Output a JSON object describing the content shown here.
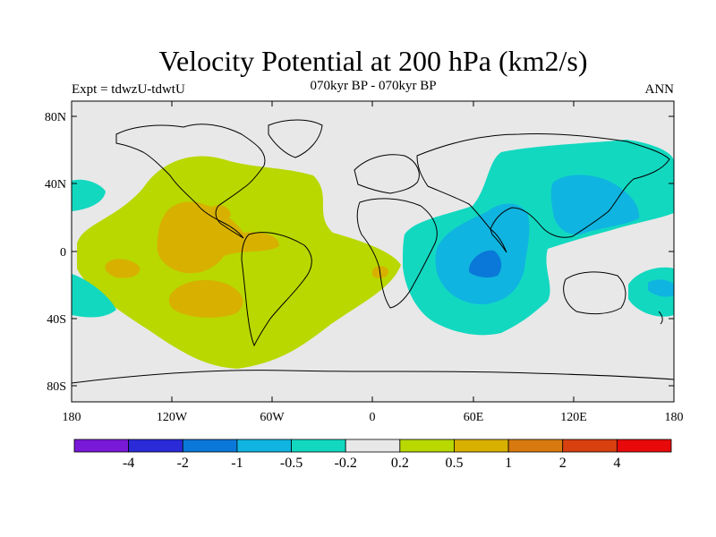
{
  "title": "Velocity Potential at 200 hPa (km2/s)",
  "subtitle": "070kyr BP - 070kyr BP",
  "left_label": "Expt = tdwzU-tdwtU",
  "right_label": "ANN",
  "lat_ticks": [
    "80N",
    "40N",
    "0",
    "40S",
    "80S"
  ],
  "lon_ticks": [
    "180",
    "120W",
    "60W",
    "0",
    "60E",
    "120E",
    "180"
  ],
  "colorbar": {
    "colors": [
      "#7a18d8",
      "#2a2ad8",
      "#0a78d8",
      "#10b4e0",
      "#12d8c0",
      "#e8e8e8",
      "#b8d800",
      "#d8b000",
      "#d87a10",
      "#d84010",
      "#e80a0a"
    ],
    "labels": [
      "-4",
      "-2",
      "-1",
      "-0.5",
      "-0.2",
      "0.2",
      "0.5",
      "1",
      "2",
      "4"
    ]
  },
  "map": {
    "background_color": "#e8e8e8",
    "land_outline_color": "#000000"
  }
}
